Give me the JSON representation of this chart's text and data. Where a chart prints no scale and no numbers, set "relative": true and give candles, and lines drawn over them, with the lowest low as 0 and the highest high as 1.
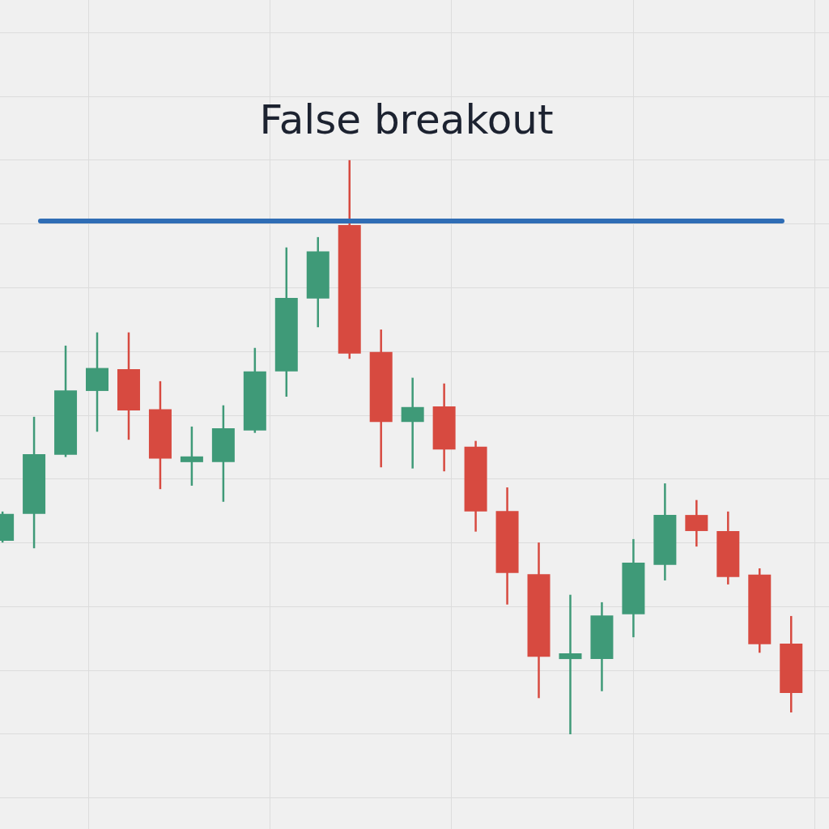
{
  "chart_data": {
    "type": "candlestick",
    "title": "False breakout",
    "relative": true,
    "grid": true,
    "categories": [
      null,
      null,
      null,
      null,
      null,
      null,
      null,
      null,
      null,
      null,
      null,
      null,
      null,
      null,
      null,
      null,
      null,
      null,
      null,
      null,
      null,
      null,
      null,
      null,
      null,
      null
    ],
    "ohlc": [
      [
        0.337,
        0.388,
        0.334,
        0.384
      ],
      [
        0.384,
        0.553,
        0.324,
        0.488
      ],
      [
        0.487,
        0.677,
        0.483,
        0.599
      ],
      [
        0.598,
        0.7,
        0.527,
        0.638
      ],
      [
        0.636,
        0.7,
        0.513,
        0.564
      ],
      [
        0.566,
        0.615,
        0.427,
        0.48
      ],
      [
        0.474,
        0.536,
        0.433,
        0.484
      ],
      [
        0.474,
        0.573,
        0.405,
        0.533
      ],
      [
        0.529,
        0.673,
        0.525,
        0.632
      ],
      [
        0.632,
        0.848,
        0.588,
        0.76
      ],
      [
        0.759,
        0.866,
        0.709,
        0.841
      ],
      [
        0.887,
        1,
        0.654,
        0.663
      ],
      [
        0.666,
        0.705,
        0.465,
        0.544
      ],
      [
        0.544,
        0.621,
        0.463,
        0.57
      ],
      [
        0.571,
        0.611,
        0.458,
        0.496
      ],
      [
        0.501,
        0.511,
        0.353,
        0.388
      ],
      [
        0.389,
        0.43,
        0.226,
        0.281
      ],
      [
        0.279,
        0.334,
        0.063,
        0.135
      ],
      [
        0.131,
        0.243,
        0,
        0.141
      ],
      [
        0.131,
        0.23,
        0.075,
        0.207
      ],
      [
        0.209,
        0.34,
        0.169,
        0.299
      ],
      [
        0.295,
        0.437,
        0.268,
        0.382
      ],
      [
        0.382,
        0.408,
        0.327,
        0.354
      ],
      [
        0.354,
        0.388,
        0.261,
        0.274
      ],
      [
        0.278,
        0.289,
        0.142,
        0.157
      ],
      [
        0.158,
        0.206,
        0.038,
        0.072
      ]
    ],
    "colors": [
      "#3f9a78",
      "#3f9a78",
      "#3f9a78",
      "#3f9a78",
      "#d74a40",
      "#d74a40",
      "#3f9a78",
      "#3f9a78",
      "#3f9a78",
      "#3f9a78",
      "#3f9a78",
      "#d74a40",
      "#d74a40",
      "#3f9a78",
      "#d74a40",
      "#d74a40",
      "#d74a40",
      "#d74a40",
      "#3f9a78",
      "#3f9a78",
      "#3f9a78",
      "#3f9a78",
      "#d74a40",
      "#d74a40",
      "#d74a40",
      "#d74a40"
    ],
    "ref_lines": [
      {
        "axis": "y",
        "value": 0.894,
        "color": "#2f6db5"
      }
    ]
  }
}
